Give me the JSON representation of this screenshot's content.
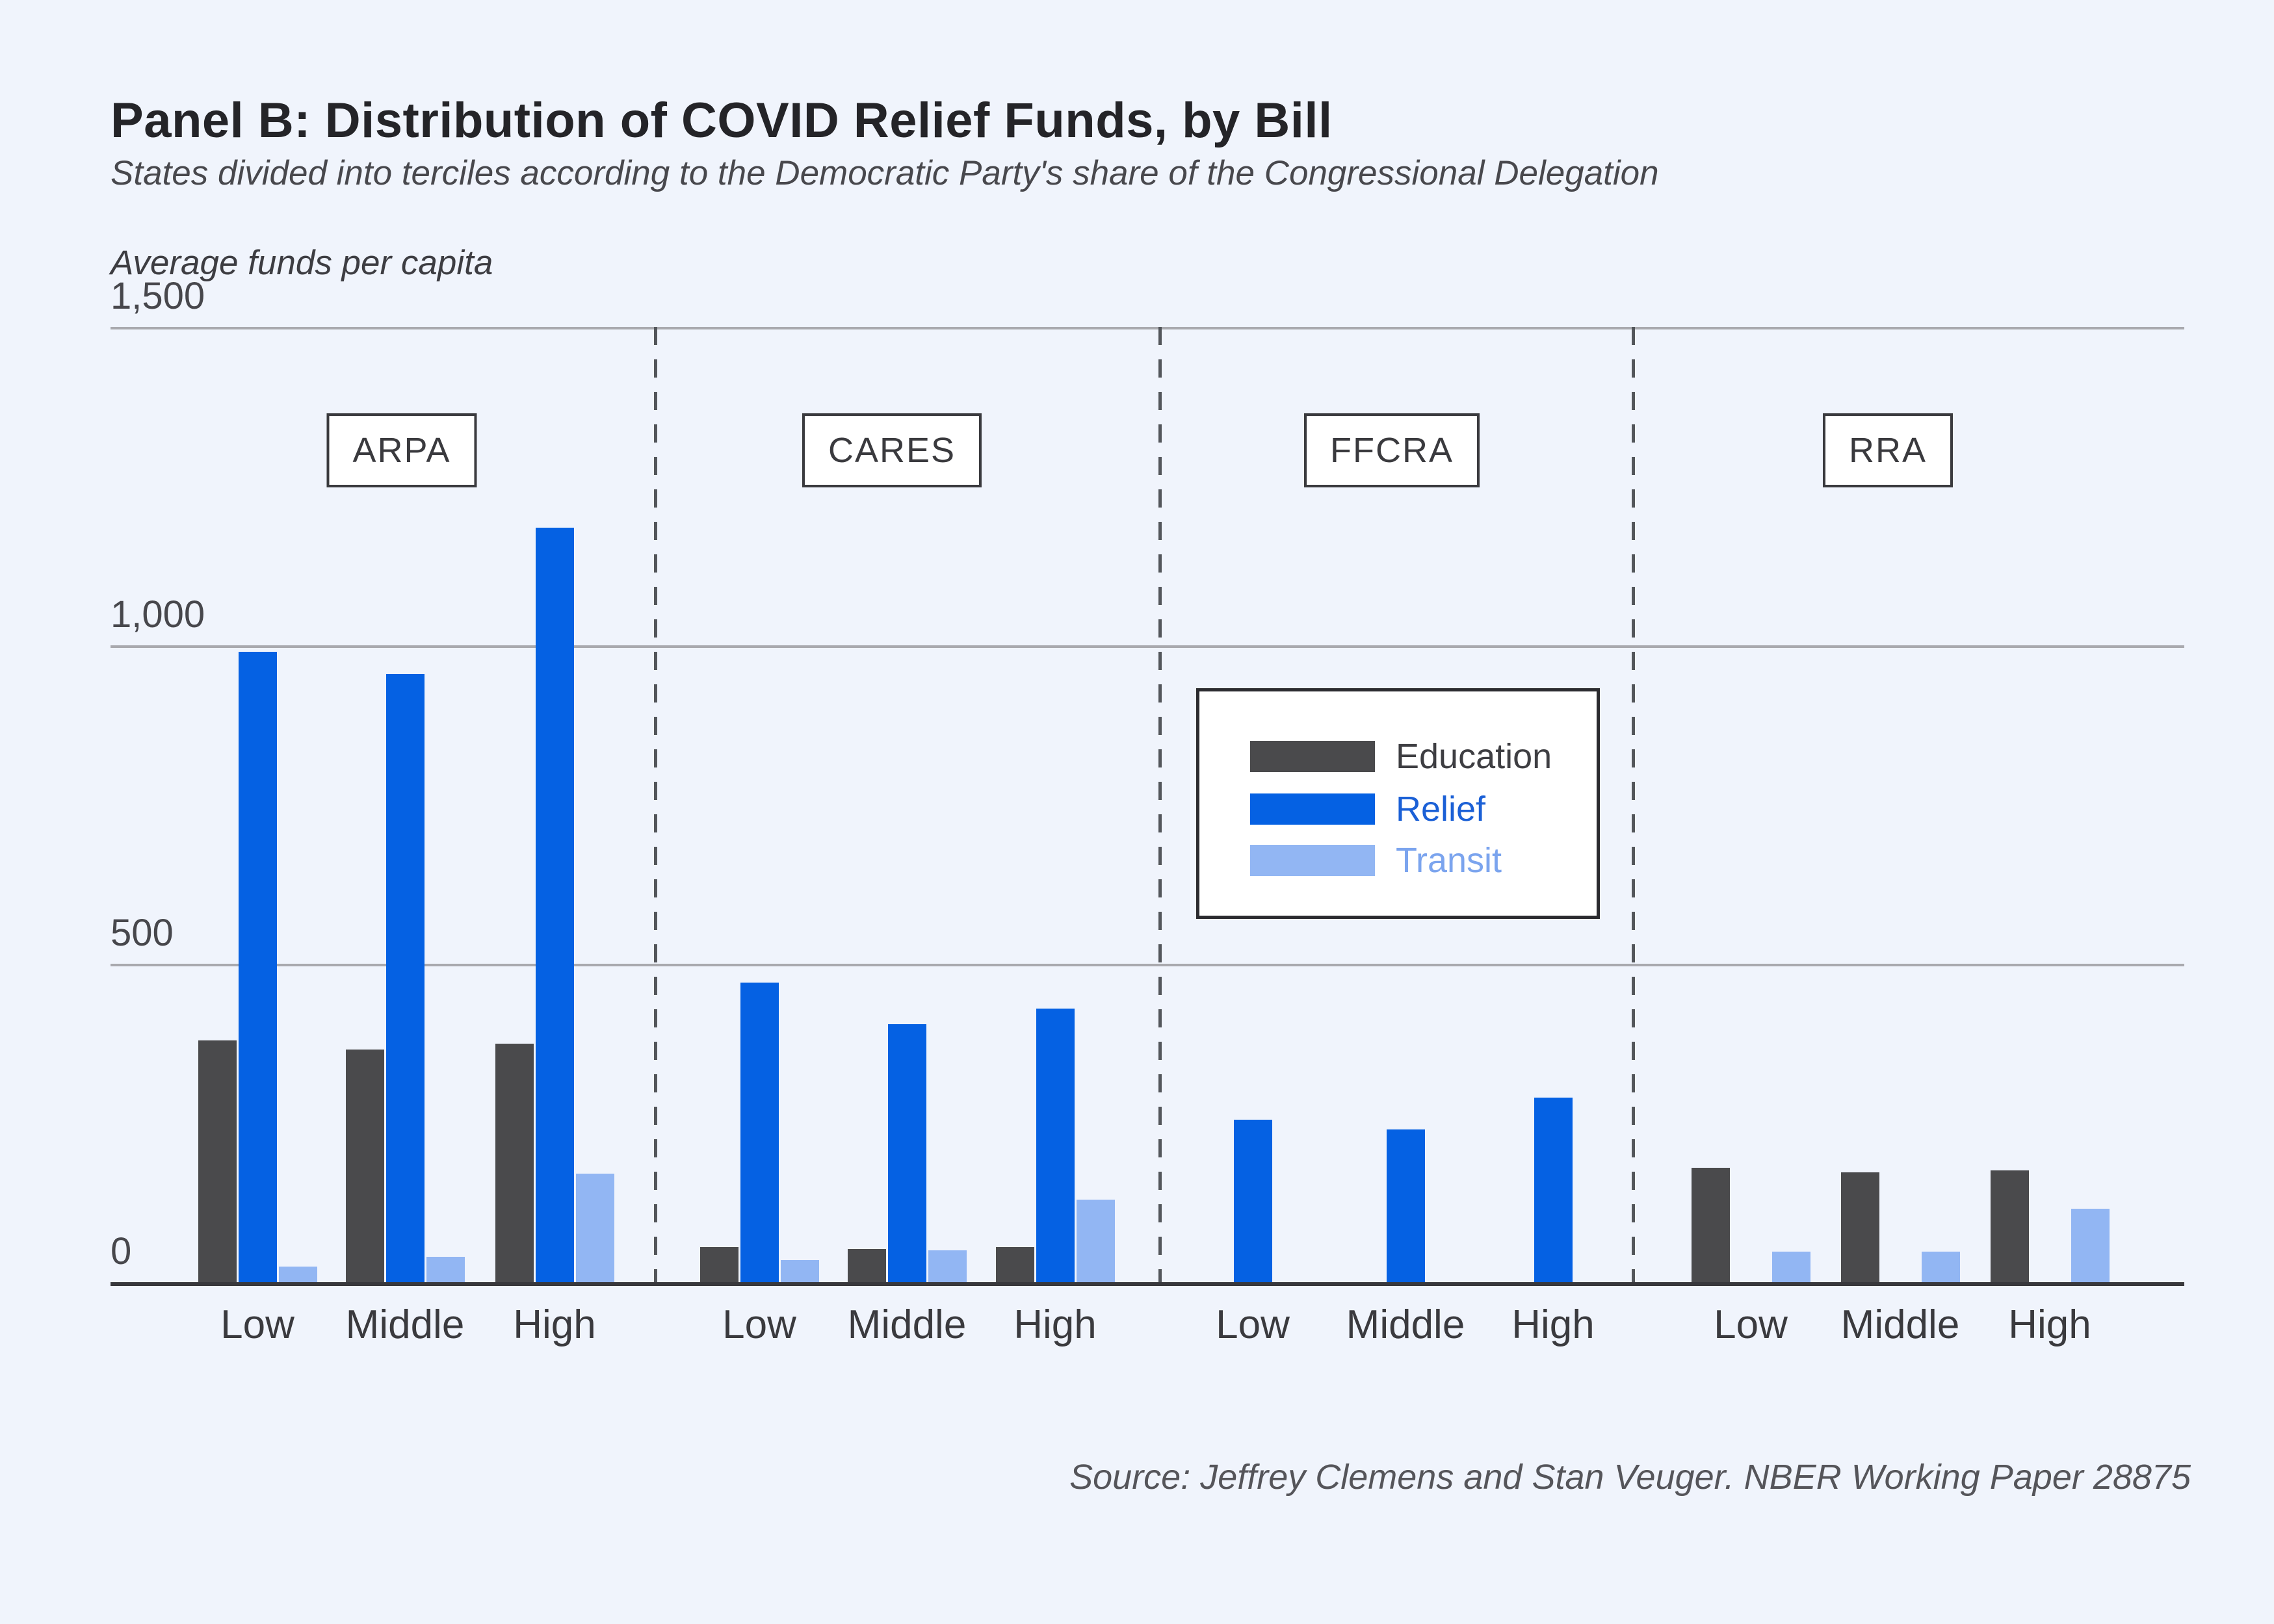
{
  "header": {
    "title": "Panel B: Distribution of COVID Relief Funds, by Bill",
    "subtitle": "States divided into terciles according to the Democratic Party's share of the Congressional Delegation"
  },
  "chart_data": {
    "type": "bar",
    "title": "Panel B: Distribution of COVID Relief Funds, by Bill",
    "subtitle": "States divided into terciles according to the Democratic Party's share of the Congressional Delegation",
    "ylabel": "Average funds per capita",
    "xlabel": "",
    "ylim": [
      0,
      1500
    ],
    "grid": true,
    "y_ticks": [
      {
        "value": 0,
        "label": "0"
      },
      {
        "value": 500,
        "label": "500"
      },
      {
        "value": 1000,
        "label": "1,000"
      },
      {
        "value": 1500,
        "label": "1,500"
      }
    ],
    "series": [
      {
        "name": "Education",
        "color": "#4a4a4c",
        "label_color": "#3e3e42"
      },
      {
        "name": "Relief",
        "color": "#0561e3",
        "label_color": "#1b60d6"
      },
      {
        "name": "Transit",
        "color": "#92b6f3",
        "label_color": "#7ba4ee"
      }
    ],
    "legend_position": "center-right",
    "panels": [
      {
        "bill": "ARPA",
        "groups": [
          {
            "label": "Low",
            "values": [
              380,
              990,
              25
            ]
          },
          {
            "label": "Middle",
            "values": [
              365,
              955,
              40
            ]
          },
          {
            "label": "High",
            "values": [
              375,
              1185,
              170
            ]
          }
        ]
      },
      {
        "bill": "CARES",
        "groups": [
          {
            "label": "Low",
            "values": [
              55,
              470,
              35
            ]
          },
          {
            "label": "Middle",
            "values": [
              52,
              405,
              50
            ]
          },
          {
            "label": "High",
            "values": [
              55,
              430,
              130
            ]
          }
        ]
      },
      {
        "bill": "FFCRA",
        "groups": [
          {
            "label": "Low",
            "values": [
              0,
              255,
              0
            ]
          },
          {
            "label": "Middle",
            "values": [
              0,
              240,
              0
            ]
          },
          {
            "label": "High",
            "values": [
              0,
              290,
              0
            ]
          }
        ]
      },
      {
        "bill": "RRA",
        "groups": [
          {
            "label": "Low",
            "values": [
              180,
              0,
              48
            ]
          },
          {
            "label": "Middle",
            "values": [
              172,
              0,
              48
            ]
          },
          {
            "label": "High",
            "values": [
              176,
              0,
              115
            ]
          }
        ]
      }
    ]
  },
  "footer": {
    "source": "Source: Jeffrey Clemens and Stan Veuger. NBER Working Paper 28875"
  }
}
